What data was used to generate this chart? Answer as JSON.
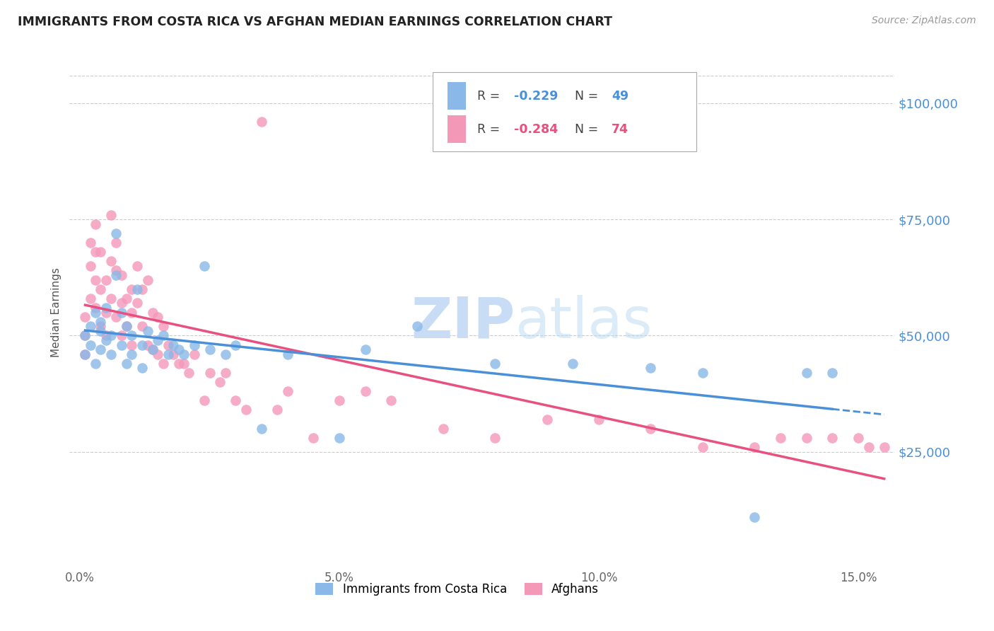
{
  "title": "IMMIGRANTS FROM COSTA RICA VS AFGHAN MEDIAN EARNINGS CORRELATION CHART",
  "source": "Source: ZipAtlas.com",
  "ylabel": "Median Earnings",
  "xlabel_ticks": [
    "0.0%",
    "5.0%",
    "10.0%",
    "15.0%"
  ],
  "xlabel_vals": [
    0.0,
    0.05,
    0.1,
    0.15
  ],
  "ylabel_ticks": [
    "$25,000",
    "$50,000",
    "$75,000",
    "$100,000"
  ],
  "ylabel_vals": [
    25000,
    50000,
    75000,
    100000
  ],
  "ylim": [
    0,
    110000
  ],
  "xlim": [
    -0.002,
    0.157
  ],
  "legend_label1": "Immigrants from Costa Rica",
  "legend_label2": "Afghans",
  "watermark": "ZIPatlas",
  "watermark_color": "#c8ddf5",
  "costa_rica_color": "#8ab8e8",
  "afghan_color": "#f498b8",
  "costa_rica_line_color": "#4a90d9",
  "afghan_line_color": "#e85080",
  "cr_intercept": 54000,
  "cr_slope": -180000,
  "af_intercept": 60000,
  "af_slope": -230000,
  "costa_rica_x": [
    0.001,
    0.001,
    0.002,
    0.002,
    0.003,
    0.003,
    0.004,
    0.004,
    0.004,
    0.005,
    0.005,
    0.006,
    0.006,
    0.007,
    0.007,
    0.008,
    0.008,
    0.009,
    0.009,
    0.01,
    0.01,
    0.011,
    0.012,
    0.012,
    0.013,
    0.014,
    0.015,
    0.016,
    0.017,
    0.018,
    0.019,
    0.02,
    0.022,
    0.024,
    0.025,
    0.028,
    0.03,
    0.035,
    0.04,
    0.05,
    0.055,
    0.065,
    0.08,
    0.095,
    0.11,
    0.12,
    0.13,
    0.14,
    0.145
  ],
  "costa_rica_y": [
    50000,
    46000,
    52000,
    48000,
    55000,
    44000,
    51000,
    47000,
    53000,
    49000,
    56000,
    50000,
    46000,
    72000,
    63000,
    55000,
    48000,
    52000,
    44000,
    50000,
    46000,
    60000,
    48000,
    43000,
    51000,
    47000,
    49000,
    50000,
    46000,
    48000,
    47000,
    46000,
    48000,
    65000,
    47000,
    46000,
    48000,
    30000,
    46000,
    28000,
    47000,
    52000,
    44000,
    44000,
    43000,
    42000,
    11000,
    42000,
    42000
  ],
  "afghan_x": [
    0.001,
    0.001,
    0.001,
    0.002,
    0.002,
    0.002,
    0.003,
    0.003,
    0.003,
    0.003,
    0.004,
    0.004,
    0.004,
    0.005,
    0.005,
    0.005,
    0.006,
    0.006,
    0.006,
    0.007,
    0.007,
    0.007,
    0.008,
    0.008,
    0.008,
    0.009,
    0.009,
    0.01,
    0.01,
    0.01,
    0.011,
    0.011,
    0.012,
    0.012,
    0.013,
    0.013,
    0.014,
    0.014,
    0.015,
    0.015,
    0.016,
    0.016,
    0.017,
    0.018,
    0.019,
    0.02,
    0.021,
    0.022,
    0.024,
    0.025,
    0.027,
    0.028,
    0.03,
    0.032,
    0.035,
    0.038,
    0.04,
    0.045,
    0.05,
    0.055,
    0.06,
    0.07,
    0.08,
    0.09,
    0.1,
    0.11,
    0.12,
    0.13,
    0.135,
    0.14,
    0.145,
    0.15,
    0.152,
    0.155
  ],
  "afghan_y": [
    54000,
    50000,
    46000,
    58000,
    70000,
    65000,
    56000,
    74000,
    68000,
    62000,
    60000,
    52000,
    68000,
    55000,
    62000,
    50000,
    76000,
    66000,
    58000,
    70000,
    64000,
    54000,
    63000,
    57000,
    50000,
    58000,
    52000,
    60000,
    55000,
    48000,
    65000,
    57000,
    60000,
    52000,
    62000,
    48000,
    55000,
    47000,
    54000,
    46000,
    52000,
    44000,
    48000,
    46000,
    44000,
    44000,
    42000,
    46000,
    36000,
    42000,
    40000,
    42000,
    36000,
    34000,
    96000,
    34000,
    38000,
    28000,
    36000,
    38000,
    36000,
    30000,
    28000,
    32000,
    32000,
    30000,
    26000,
    26000,
    28000,
    28000,
    28000,
    28000,
    26000,
    26000
  ]
}
